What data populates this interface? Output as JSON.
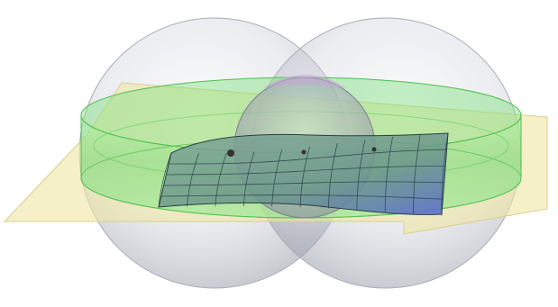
{
  "scene": {
    "colors": {
      "background": "#ffffff",
      "sphere_fill": "#b9bcc7",
      "sphere_edge": "#8d909b",
      "plane_fill": "#eee6a4",
      "plane_edge": "#cfc78a",
      "disk_fill": "#7fe07f",
      "disk_edge": "#3fae3f",
      "small_sphere_fill": "#9ea2b3",
      "small_sphere_top": "#c9a4d9",
      "surface_fill": "#6f9c8a",
      "surface_grid": "#2a3f46",
      "surface_corner": "#5a63d6",
      "point_fill": "#333333"
    },
    "elements": [
      {
        "name": "left-sphere",
        "kind": "large transparent sphere"
      },
      {
        "name": "right-sphere",
        "kind": "large transparent sphere"
      },
      {
        "name": "horizontal-plane",
        "kind": "translucent yellow plane"
      },
      {
        "name": "green-disk",
        "kind": "translucent green cylinder disk"
      },
      {
        "name": "center-sphere",
        "kind": "small transparent sphere"
      },
      {
        "name": "curved-surface",
        "kind": "gridded surface patch"
      }
    ],
    "marked_points": 3
  }
}
